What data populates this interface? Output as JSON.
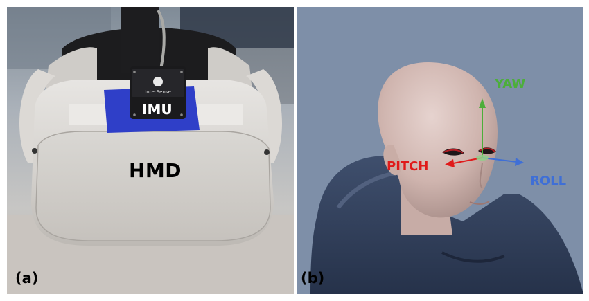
{
  "figure": {
    "panel_a": {
      "letter": "(a)",
      "imu_label": "IMU",
      "hmd_label": "HMD",
      "sensor_brand_text": "InterSense"
    },
    "panel_b": {
      "letter": "(b)",
      "axes": {
        "yaw": "YAW",
        "pitch": "PITCH",
        "roll": "ROLL"
      }
    }
  },
  "colors": {
    "yaw": "#4cae3a",
    "pitch": "#e01a1a",
    "roll": "#3f6fd6",
    "imu_tape": "#2f3fc8",
    "hmd_shell": "#d6d4d1",
    "hoodie": "#2e3b55",
    "background_b": "#7c8da6"
  }
}
